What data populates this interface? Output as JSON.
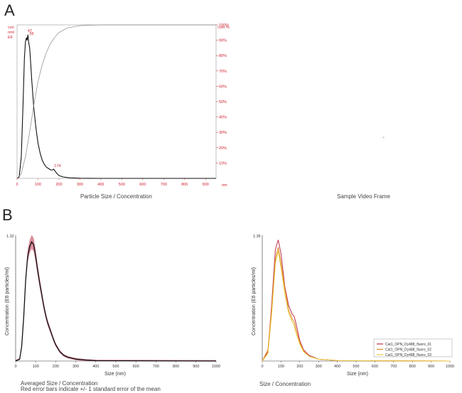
{
  "labels": {
    "panel_a": "A",
    "panel_b": "B"
  },
  "chart_data": [
    {
      "type": "line",
      "caption": "Particle Size / Concentration",
      "y_label_left": [
        "con",
        "nml",
        "E6"
      ],
      "y_label_right": "cum %",
      "x_unit": "nm",
      "x_ticks": [
        "0",
        "100",
        "200",
        "300",
        "400",
        "500",
        "600",
        "700",
        "800",
        "900"
      ],
      "y_right_ticks": [
        "100%",
        "90%",
        "80%",
        "70%",
        "60%",
        "50%",
        "40%",
        "30%",
        "20%",
        "10%"
      ],
      "peak_labels": [
        {
          "text": "56",
          "x": 56,
          "y": 1.0
        },
        {
          "text": "47",
          "x": 47,
          "y": 1.02
        },
        {
          "text": "174",
          "x": 174,
          "y": 0.06
        }
      ],
      "xlim": [
        0,
        950
      ],
      "ylim_right": [
        0,
        100
      ],
      "series": [
        {
          "kind": "concentration",
          "x": [
            0,
            10,
            20,
            28,
            35,
            40,
            45,
            48,
            52,
            56,
            60,
            65,
            70,
            80,
            90,
            100,
            110,
            120,
            130,
            140,
            150,
            160,
            170,
            175,
            180,
            190,
            200,
            220,
            250,
            300,
            400,
            600,
            950
          ],
          "y": [
            0,
            0.01,
            0.15,
            0.5,
            0.85,
            0.97,
            1.0,
            0.98,
            1.02,
            0.96,
            0.93,
            0.82,
            0.7,
            0.5,
            0.36,
            0.25,
            0.18,
            0.13,
            0.1,
            0.08,
            0.07,
            0.06,
            0.06,
            0.065,
            0.055,
            0.035,
            0.02,
            0.01,
            0.004,
            0.001,
            0,
            0,
            0
          ]
        },
        {
          "kind": "cumulative_percent",
          "x": [
            0,
            20,
            40,
            60,
            80,
            100,
            120,
            140,
            160,
            180,
            200,
            240,
            300,
            400,
            950
          ],
          "y": [
            0,
            3,
            14,
            30,
            48,
            63,
            74,
            82,
            88,
            92,
            95,
            98,
            99.5,
            100,
            100
          ]
        }
      ]
    },
    {
      "type": "image",
      "caption": "Sample Video Frame"
    },
    {
      "type": "line",
      "caption_lines": [
        "Averaged Size / Concentration",
        "Red error bars indicate +/- 1 standard error of the mean"
      ],
      "xlabel": "Size (nm)",
      "ylabel": "Concentration (E6 particles/ml)",
      "x_ticks": [
        "0",
        "100",
        "200",
        "300",
        "400",
        "500",
        "600",
        "700",
        "800",
        "900",
        "1000"
      ],
      "y_max_label": "1.32",
      "xlim": [
        0,
        1000
      ],
      "ylim": [
        0,
        1.32
      ],
      "series": [
        {
          "kind": "mean",
          "x": [
            0,
            20,
            30,
            40,
            50,
            60,
            70,
            80,
            90,
            100,
            110,
            120,
            130,
            140,
            150,
            160,
            170,
            180,
            190,
            200,
            220,
            240,
            260,
            280,
            300,
            350,
            400,
            1000
          ],
          "y": [
            0,
            0.02,
            0.15,
            0.45,
            0.85,
            1.1,
            1.2,
            1.25,
            1.22,
            1.1,
            0.95,
            0.82,
            0.7,
            0.58,
            0.48,
            0.4,
            0.34,
            0.28,
            0.22,
            0.17,
            0.1,
            0.06,
            0.04,
            0.03,
            0.02,
            0.01,
            0.004,
            0
          ]
        }
      ]
    },
    {
      "type": "line",
      "caption": "Size / Concentration",
      "xlabel": "Size (nm)",
      "ylabel": "Concentration (E6 particles/ml)",
      "x_ticks": [
        "0",
        "100",
        "200",
        "300",
        "400",
        "500",
        "600",
        "700",
        "800",
        "900",
        "1000"
      ],
      "y_max_label": "1.35",
      "xlim": [
        0,
        1000
      ],
      "ylim": [
        0,
        1.35
      ],
      "legend_position": "bottom-right",
      "series": [
        {
          "name": "Cat1_OPN_Dy488_fluoro_01",
          "color": "#c0304a",
          "x": [
            0,
            30,
            50,
            70,
            85,
            100,
            120,
            140,
            160,
            170,
            180,
            200,
            220,
            250,
            300,
            400,
            1000
          ],
          "y": [
            0,
            0.1,
            0.6,
            1.2,
            1.3,
            1.15,
            0.8,
            0.6,
            0.5,
            0.48,
            0.4,
            0.22,
            0.12,
            0.06,
            0.02,
            0.005,
            0
          ]
        },
        {
          "name": "Cat1_OPN_Dy488_fluoro_02",
          "color": "#e08a20",
          "x": [
            0,
            30,
            50,
            70,
            85,
            100,
            120,
            140,
            160,
            170,
            180,
            200,
            220,
            250,
            300,
            400,
            1000
          ],
          "y": [
            0,
            0.12,
            0.55,
            1.1,
            1.22,
            1.05,
            0.78,
            0.55,
            0.45,
            0.42,
            0.34,
            0.2,
            0.11,
            0.05,
            0.02,
            0.005,
            0
          ]
        },
        {
          "name": "Cat1_OPN_Dy488_fluoro_03",
          "color": "#e8c840",
          "x": [
            0,
            30,
            50,
            70,
            85,
            100,
            120,
            140,
            160,
            170,
            180,
            200,
            220,
            250,
            300,
            400,
            1000
          ],
          "y": [
            0,
            0.08,
            0.5,
            1.05,
            1.18,
            1.0,
            0.72,
            0.52,
            0.42,
            0.38,
            0.3,
            0.18,
            0.1,
            0.05,
            0.02,
            0.005,
            0
          ]
        }
      ]
    }
  ]
}
